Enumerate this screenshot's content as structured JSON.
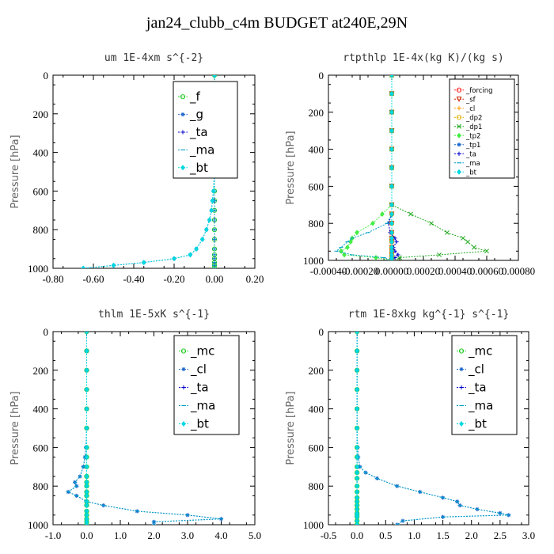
{
  "page_title": "jan24_clubb_c4m  BUDGET at240E,29N",
  "chart_data": [
    {
      "type": "line",
      "title": "um  1E-4xm s^{-2}",
      "ylabel": "Pressure [hPa]",
      "xlim": [
        -0.8,
        0.2
      ],
      "ylim": [
        1000,
        0
      ],
      "xticks": [
        "-0.80",
        "-0.60",
        "-0.40",
        "-0.20",
        "0.00",
        "0.20"
      ],
      "yticks": [
        "0",
        "200",
        "400",
        "600",
        "800",
        "1000"
      ],
      "legend_position": "top-right",
      "pressure": [
        0,
        100,
        200,
        300,
        400,
        500,
        600,
        650,
        700,
        750,
        800,
        850,
        900,
        930,
        950,
        970,
        985,
        1000
      ],
      "series": [
        {
          "name": "_f",
          "color": "#22cc22",
          "marker": "o",
          "values": [
            0,
            0,
            0,
            0,
            0,
            0,
            0,
            0,
            0,
            0,
            0,
            0,
            0,
            0,
            0,
            0,
            0,
            0
          ]
        },
        {
          "name": "_g",
          "color": "#1a66cc",
          "marker": "*",
          "values": [
            0,
            0,
            0,
            0,
            0,
            0,
            -0.005,
            -0.01,
            -0.015,
            -0.025,
            -0.04,
            -0.06,
            -0.09,
            -0.12,
            -0.2,
            -0.35,
            -0.5,
            -0.65
          ]
        },
        {
          "name": "_ta",
          "color": "#0000cc",
          "marker": "+",
          "values": [
            0,
            0,
            0,
            0,
            0,
            0,
            0,
            0,
            0,
            0,
            0,
            0,
            0,
            0,
            0,
            0,
            0,
            0
          ]
        },
        {
          "name": "_ma",
          "color": "#00a0c8",
          "marker": "-",
          "values": [
            0,
            0,
            0,
            0,
            0,
            0,
            0,
            0,
            0,
            0,
            0,
            0,
            0,
            0,
            0,
            0,
            0,
            0
          ]
        },
        {
          "name": "_bt",
          "color": "#00d8e0",
          "marker": "d",
          "values": [
            0,
            0,
            0,
            0,
            0,
            0,
            -0.005,
            -0.01,
            -0.015,
            -0.025,
            -0.04,
            -0.06,
            -0.09,
            -0.12,
            -0.2,
            -0.35,
            -0.5,
            -0.65
          ]
        }
      ]
    },
    {
      "type": "line",
      "title": "rtpthlp  1E-4x(kg K)/(kg s)",
      "ylabel": "Pressure [hPa]",
      "xlim": [
        -0.0004,
        0.0008
      ],
      "ylim": [
        1000,
        0
      ],
      "xticks": [
        "-0.00040",
        "-0.00020",
        "0.00000",
        "0.00020",
        "0.00040",
        "0.00060",
        "0.00080"
      ],
      "yticks": [
        "0",
        "200",
        "400",
        "600",
        "800",
        "1000"
      ],
      "legend_position": "top-right",
      "pressure": [
        0,
        100,
        200,
        300,
        400,
        500,
        600,
        700,
        750,
        800,
        850,
        880,
        900,
        930,
        950,
        970,
        985,
        1000
      ],
      "series": [
        {
          "name": "_forcing",
          "color": "#ff2222",
          "marker": "o",
          "values": [
            0,
            0,
            0,
            0,
            0,
            0,
            0,
            0,
            0,
            0,
            0,
            0,
            0,
            0,
            0,
            0,
            0,
            0
          ]
        },
        {
          "name": "_sf",
          "color": "#cc2200",
          "marker": "v",
          "values": [
            0,
            0,
            0,
            0,
            0,
            0,
            0,
            0,
            0,
            0,
            0,
            0,
            0,
            0,
            0,
            0,
            0,
            0
          ]
        },
        {
          "name": "_cl",
          "color": "#ff9900",
          "marker": "+",
          "values": [
            0,
            0,
            0,
            0,
            0,
            0,
            0,
            0,
            0,
            0,
            0,
            0,
            0,
            0,
            0,
            0,
            0,
            0
          ]
        },
        {
          "name": "_dp2",
          "color": "#e0b000",
          "marker": "o",
          "values": [
            0,
            0,
            0,
            0,
            0,
            0,
            0,
            0,
            0,
            0,
            0,
            0,
            0,
            0,
            0,
            0,
            0,
            0
          ]
        },
        {
          "name": "_dp1",
          "color": "#22aa22",
          "marker": "x",
          "values": [
            0,
            0,
            0,
            0,
            0,
            0,
            0,
            0,
            0.00012,
            0.00025,
            0.00035,
            0.00045,
            0.00048,
            0.00052,
            0.0006,
            0.0003,
            5e-05,
            0
          ]
        },
        {
          "name": "_tp2",
          "color": "#44ee44",
          "marker": "d",
          "values": [
            0,
            0,
            0,
            0,
            0,
            0,
            0,
            0,
            -6e-05,
            -0.00012,
            -0.00022,
            -0.00025,
            -0.00026,
            -0.00028,
            -0.00032,
            -0.0003,
            -0.0001,
            0
          ]
        },
        {
          "name": "_tp1",
          "color": "#1a66cc",
          "marker": "*",
          "values": [
            0,
            0,
            0,
            0,
            0,
            0,
            0,
            0,
            0,
            0,
            0,
            0,
            0,
            0,
            0,
            0,
            0,
            0
          ]
        },
        {
          "name": "_ta",
          "color": "#0000cc",
          "marker": "+",
          "values": [
            0,
            0,
            0,
            0,
            0,
            0,
            0,
            0,
            0,
            -2e-05,
            -1e-05,
            2e-05,
            3e-05,
            1e-05,
            2e-05,
            4e-05,
            2e-05,
            0
          ]
        },
        {
          "name": "_ma",
          "color": "#00a0c8",
          "marker": "-",
          "values": [
            0,
            0,
            0,
            0,
            0,
            0,
            0,
            0,
            0,
            -3e-05,
            -0.00015,
            -0.00025,
            -0.00028,
            -0.00032,
            -0.00035,
            -0.00025,
            -5e-05,
            0
          ]
        },
        {
          "name": "_bt",
          "color": "#00d8e0",
          "marker": "d",
          "values": [
            0,
            0,
            0,
            0,
            0,
            0,
            0,
            0,
            0,
            0,
            0,
            0,
            0,
            0,
            0,
            0,
            0,
            0
          ]
        }
      ]
    },
    {
      "type": "line",
      "title": "thlm  1E-5xK s^{-1}",
      "ylabel": "Pressure [hPa]",
      "xlim": [
        -1.0,
        5.0
      ],
      "ylim": [
        1000,
        0
      ],
      "xticks": [
        "-1.0",
        "0.0",
        "1.0",
        "2.0",
        "3.0",
        "4.0",
        "5.0"
      ],
      "yticks": [
        "0",
        "200",
        "400",
        "600",
        "800",
        "1000"
      ],
      "legend_position": "top-right",
      "pressure": [
        0,
        100,
        200,
        300,
        400,
        500,
        600,
        650,
        700,
        750,
        780,
        800,
        830,
        850,
        880,
        900,
        930,
        950,
        970,
        985,
        1000
      ],
      "series": [
        {
          "name": "_mc",
          "color": "#22cc22",
          "marker": "o",
          "values": [
            0,
            0,
            0,
            0,
            0,
            0,
            0,
            0,
            0,
            0,
            0,
            0,
            0,
            0,
            0,
            0,
            0,
            0,
            0,
            0,
            0
          ]
        },
        {
          "name": "_cl",
          "color": "#1a66cc",
          "marker": "*",
          "values": [
            0,
            0,
            0,
            0,
            0,
            0,
            -0.02,
            -0.05,
            -0.1,
            -0.2,
            -0.35,
            -0.3,
            -0.55,
            -0.3,
            0.0,
            0.5,
            1.5,
            3.0,
            4.0,
            2.0,
            2.0
          ]
        },
        {
          "name": "_ta",
          "color": "#0000cc",
          "marker": "+",
          "values": [
            0,
            0,
            0,
            0,
            0,
            0,
            0,
            0,
            0,
            0,
            0,
            0,
            0,
            0,
            0,
            0,
            0,
            0,
            0,
            0,
            0
          ]
        },
        {
          "name": "_ma",
          "color": "#00a0c8",
          "marker": "-",
          "values": [
            0,
            0,
            0,
            0,
            0,
            0,
            -0.02,
            -0.05,
            -0.1,
            -0.2,
            -0.35,
            -0.3,
            -0.55,
            -0.3,
            0.0,
            0.5,
            1.5,
            3.0,
            4.0,
            2.0,
            2.0
          ]
        },
        {
          "name": "_bt",
          "color": "#00d8e0",
          "marker": "d",
          "values": [
            0,
            0,
            0,
            0,
            0,
            0,
            0,
            0,
            0,
            0,
            0,
            0,
            0,
            0,
            0,
            0,
            0,
            0,
            0,
            0,
            0
          ]
        }
      ]
    },
    {
      "type": "line",
      "title": "rtm  1E-8xkg kg^{-1} s^{-1}",
      "ylabel": "Pressure [hPa]",
      "xlim": [
        -0.5,
        3.0
      ],
      "ylim": [
        1000,
        0
      ],
      "xticks": [
        "-0.5",
        "0.0",
        "0.5",
        "1.0",
        "1.5",
        "2.0",
        "2.5",
        "3.0"
      ],
      "yticks": [
        "0",
        "200",
        "400",
        "600",
        "800",
        "1000"
      ],
      "legend_position": "top-right",
      "pressure": [
        0,
        100,
        200,
        300,
        400,
        500,
        600,
        650,
        700,
        730,
        760,
        800,
        830,
        860,
        880,
        900,
        920,
        940,
        950,
        960,
        980,
        1000
      ],
      "series": [
        {
          "name": "_mc",
          "color": "#22cc22",
          "marker": "o",
          "values": [
            0,
            0,
            0,
            0,
            0,
            0,
            0,
            0,
            0,
            0,
            0,
            0,
            0,
            0,
            0,
            0,
            0,
            0,
            0,
            0,
            0,
            0
          ]
        },
        {
          "name": "_cl",
          "color": "#1a66cc",
          "marker": "*",
          "values": [
            0,
            0,
            0,
            0,
            0,
            0,
            0.01,
            0.02,
            0.05,
            0.15,
            0.35,
            0.7,
            1.1,
            1.5,
            1.75,
            1.8,
            2.1,
            2.5,
            2.65,
            1.5,
            0.8,
            0.7
          ]
        },
        {
          "name": "_ta",
          "color": "#0000cc",
          "marker": "+",
          "values": [
            0,
            0,
            0,
            0,
            0,
            0,
            0,
            0,
            0,
            0,
            0,
            0,
            0,
            0,
            0,
            0,
            0,
            0,
            0,
            0,
            0,
            0
          ]
        },
        {
          "name": "_ma",
          "color": "#00a0c8",
          "marker": "-",
          "values": [
            0,
            0,
            0,
            0,
            0,
            0,
            0.01,
            0.02,
            0.05,
            0.15,
            0.35,
            0.7,
            1.1,
            1.5,
            1.75,
            1.8,
            2.1,
            2.5,
            2.65,
            1.5,
            0.8,
            0.7
          ]
        },
        {
          "name": "_bt",
          "color": "#00d8e0",
          "marker": "d",
          "values": [
            0,
            0,
            0,
            0,
            0,
            0,
            0,
            0,
            0,
            0,
            0,
            0,
            0,
            0,
            0,
            0,
            0,
            0,
            0,
            0,
            0,
            0
          ]
        }
      ]
    }
  ]
}
